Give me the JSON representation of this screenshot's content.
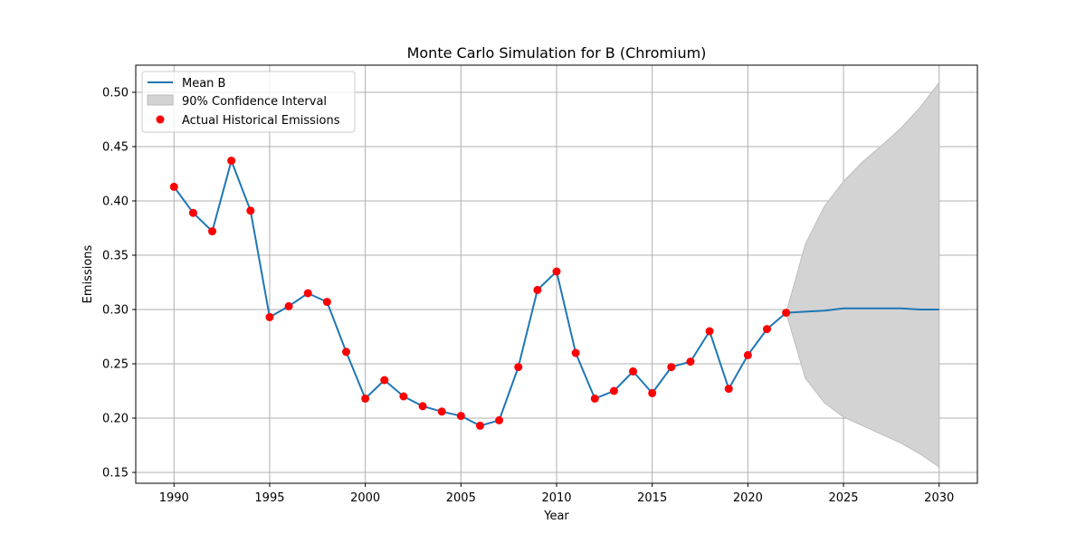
{
  "chart_data": {
    "type": "line",
    "title": "Monte Carlo Simulation for B (Chromium)",
    "xlabel": "Year",
    "ylabel": "Emissions",
    "xlim": [
      1988,
      2032
    ],
    "ylim": [
      0.14,
      0.525
    ],
    "xticks": [
      1990,
      1995,
      2000,
      2005,
      2010,
      2015,
      2020,
      2025,
      2030
    ],
    "yticks": [
      0.15,
      0.2,
      0.25,
      0.3,
      0.35,
      0.4,
      0.45,
      0.5
    ],
    "ytick_labels": [
      "0.15",
      "0.20",
      "0.25",
      "0.30",
      "0.35",
      "0.40",
      "0.45",
      "0.50"
    ],
    "grid": true,
    "legend_position": "top-left",
    "series": [
      {
        "name": "Mean B",
        "color": "#1f77b4",
        "x": [
          1990,
          1991,
          1992,
          1993,
          1994,
          1995,
          1996,
          1997,
          1998,
          1999,
          2000,
          2001,
          2002,
          2003,
          2004,
          2005,
          2006,
          2007,
          2008,
          2009,
          2010,
          2011,
          2012,
          2013,
          2014,
          2015,
          2016,
          2017,
          2018,
          2019,
          2020,
          2021,
          2022,
          2023,
          2024,
          2025,
          2026,
          2027,
          2028,
          2029,
          2030
        ],
        "y": [
          0.413,
          0.389,
          0.372,
          0.437,
          0.391,
          0.293,
          0.303,
          0.315,
          0.307,
          0.261,
          0.218,
          0.235,
          0.22,
          0.211,
          0.206,
          0.202,
          0.193,
          0.198,
          0.247,
          0.318,
          0.335,
          0.26,
          0.218,
          0.225,
          0.243,
          0.223,
          0.247,
          0.252,
          0.28,
          0.227,
          0.258,
          0.282,
          0.297,
          0.298,
          0.299,
          0.301,
          0.301,
          0.301,
          0.301,
          0.3,
          0.3
        ]
      },
      {
        "name": "90% Confidence Interval",
        "color": "#d3d3d3",
        "x": [
          2022,
          2023,
          2024,
          2025,
          2026,
          2027,
          2028,
          2029,
          2030
        ],
        "lower": [
          0.297,
          0.237,
          0.214,
          0.201,
          0.193,
          0.185,
          0.177,
          0.167,
          0.155
        ],
        "upper": [
          0.297,
          0.36,
          0.395,
          0.418,
          0.436,
          0.451,
          0.467,
          0.486,
          0.509
        ]
      },
      {
        "name": "Actual Historical Emissions",
        "color": "#ff0000",
        "x": [
          1990,
          1991,
          1992,
          1993,
          1994,
          1995,
          1996,
          1997,
          1998,
          1999,
          2000,
          2001,
          2002,
          2003,
          2004,
          2005,
          2006,
          2007,
          2008,
          2009,
          2010,
          2011,
          2012,
          2013,
          2014,
          2015,
          2016,
          2017,
          2018,
          2019,
          2020,
          2021,
          2022
        ],
        "y": [
          0.413,
          0.389,
          0.372,
          0.437,
          0.391,
          0.293,
          0.303,
          0.315,
          0.307,
          0.261,
          0.218,
          0.235,
          0.22,
          0.211,
          0.206,
          0.202,
          0.193,
          0.198,
          0.247,
          0.318,
          0.335,
          0.26,
          0.218,
          0.225,
          0.243,
          0.223,
          0.247,
          0.252,
          0.28,
          0.227,
          0.258,
          0.282,
          0.297
        ]
      }
    ]
  }
}
